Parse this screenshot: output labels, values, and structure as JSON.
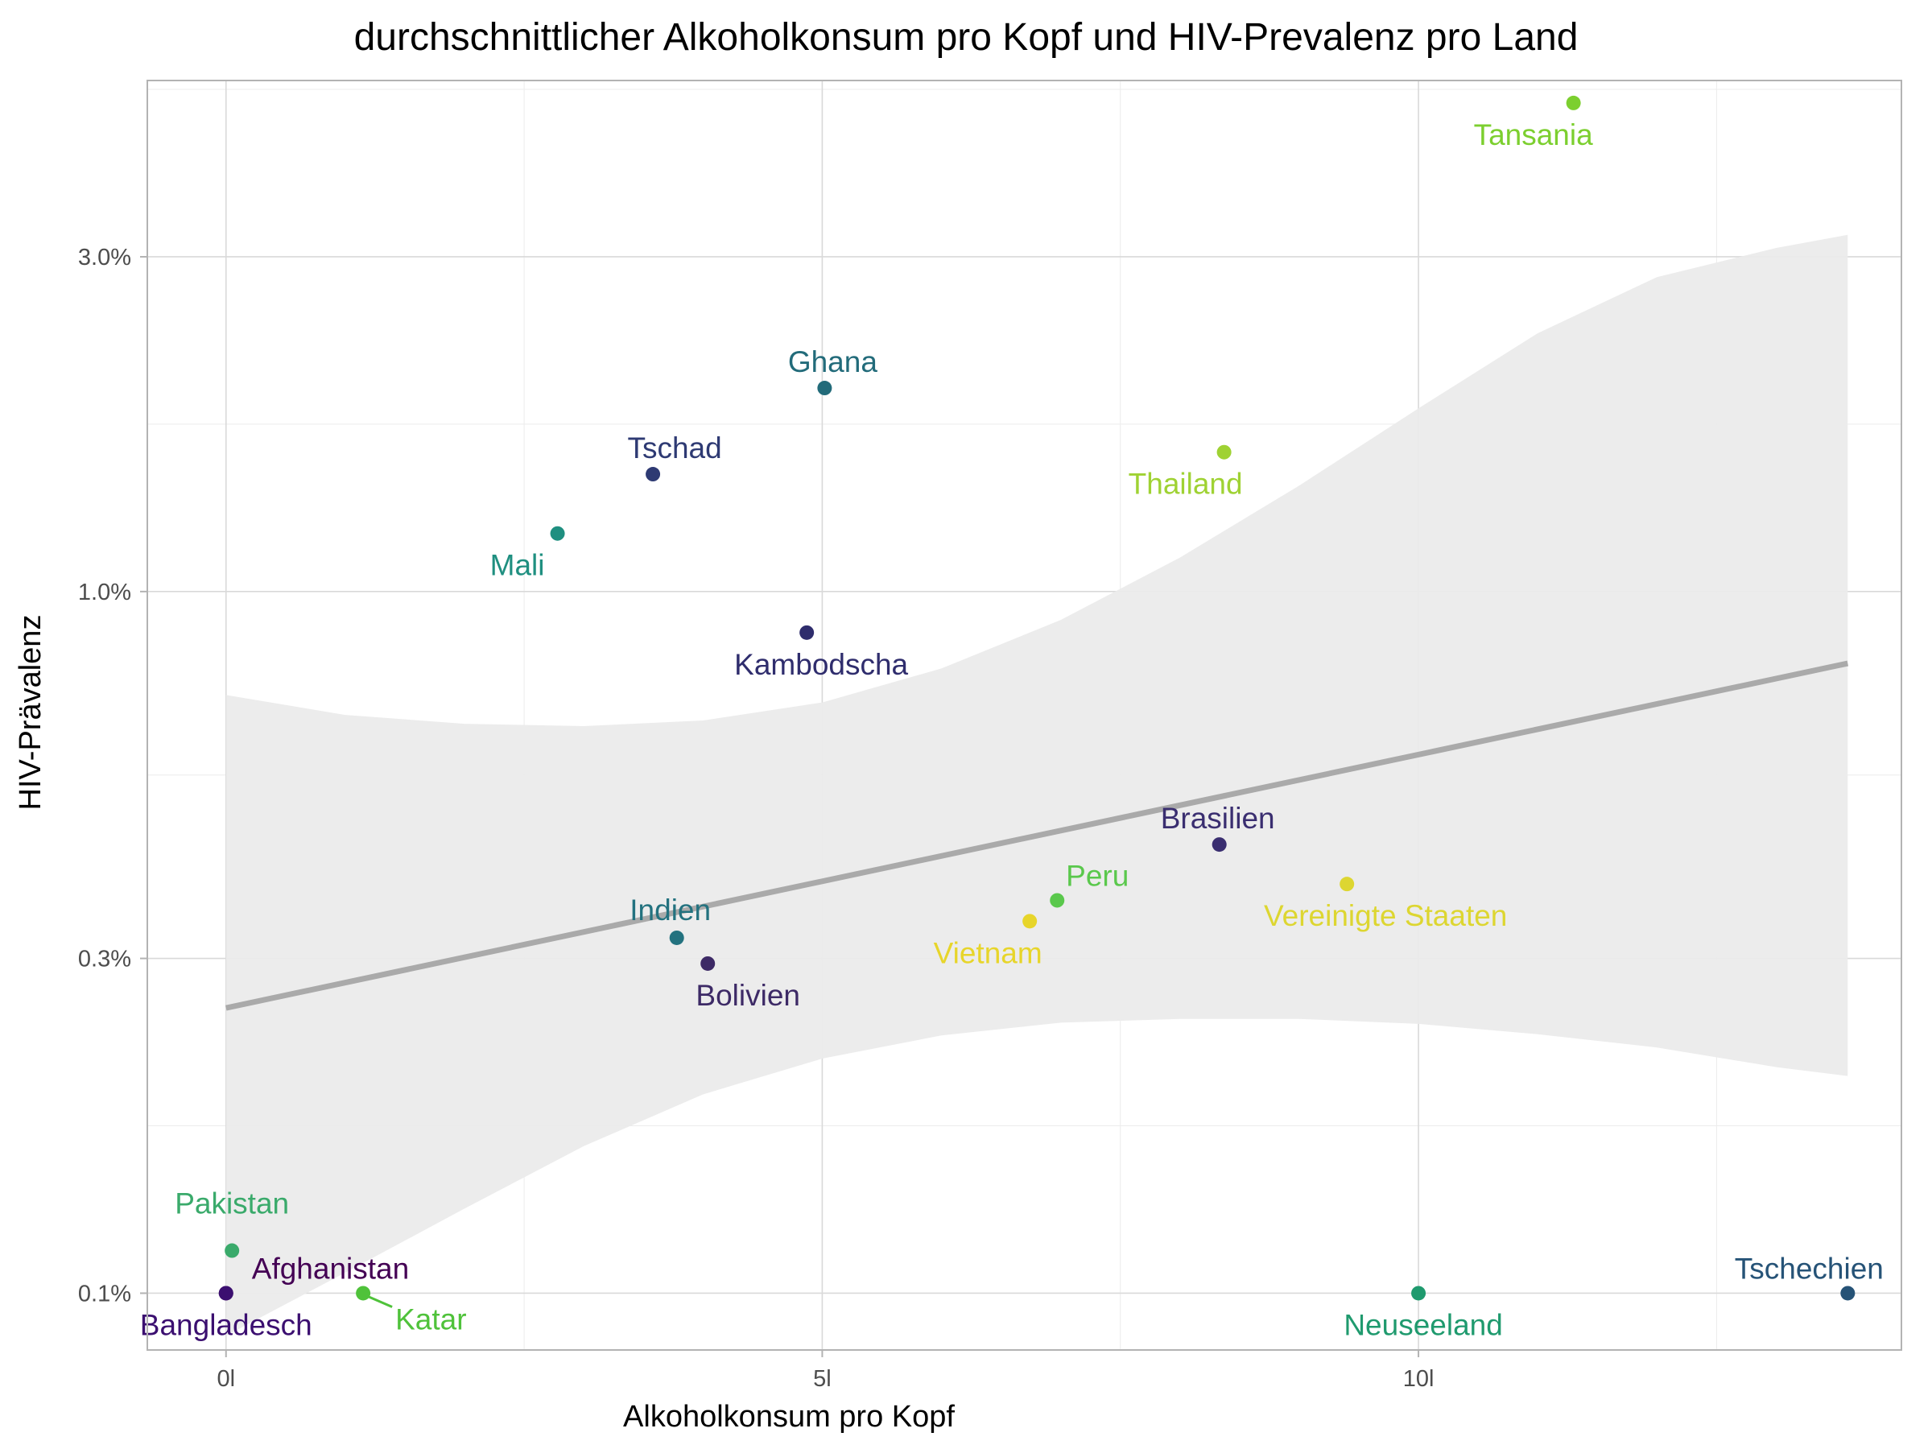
{
  "chart_data": {
    "type": "scatter",
    "title": "durchschnittlicher Alkoholkonsum pro Kopf und HIV-Prevalenz pro Land",
    "xlabel": "Alkoholkonsum pro Kopf",
    "ylabel": "HIV-Prävalenz",
    "x_ticks": [
      {
        "value": 0,
        "label": "0l"
      },
      {
        "value": 5,
        "label": "5l"
      },
      {
        "value": 10,
        "label": "10l"
      }
    ],
    "y_scale": "log10",
    "y_ticks": [
      {
        "value": 0.1,
        "label": "0.1%"
      },
      {
        "value": 0.3,
        "label": "0.3%"
      },
      {
        "value": 1.0,
        "label": "1.0%"
      },
      {
        "value": 3.0,
        "label": "3.0%"
      }
    ],
    "xlim": [
      -0.66,
      14.05
    ],
    "ylim": [
      0.083,
      5.35
    ],
    "grid": true,
    "legend": "none",
    "points": [
      {
        "name": "Afghanistan",
        "x": 0.0,
        "y": 0.1,
        "color": "#440154"
      },
      {
        "name": "Bangladesch",
        "x": 0.0,
        "y": 0.1,
        "color": "#3b0f70"
      },
      {
        "name": "Pakistan",
        "x": 0.05,
        "y": 0.115,
        "color": "#3aaa6b"
      },
      {
        "name": "Katar",
        "x": 1.15,
        "y": 0.1,
        "color": "#4fc23a"
      },
      {
        "name": "Mali",
        "x": 2.78,
        "y": 1.21,
        "color": "#1f8f80"
      },
      {
        "name": "Tschad",
        "x": 3.58,
        "y": 1.47,
        "color": "#2e3a73"
      },
      {
        "name": "Indien",
        "x": 3.78,
        "y": 0.321,
        "color": "#23727f"
      },
      {
        "name": "Bolivien",
        "x": 4.04,
        "y": 0.295,
        "color": "#3d2a66"
      },
      {
        "name": "Kambodscha",
        "x": 4.87,
        "y": 0.874,
        "color": "#2f2d6d"
      },
      {
        "name": "Ghana",
        "x": 5.02,
        "y": 1.95,
        "color": "#226b7a"
      },
      {
        "name": "Vietnam",
        "x": 6.74,
        "y": 0.339,
        "color": "#e7d52a"
      },
      {
        "name": "Peru",
        "x": 6.97,
        "y": 0.363,
        "color": "#5ac84c"
      },
      {
        "name": "Brasilien",
        "x": 8.33,
        "y": 0.436,
        "color": "#3a2e70"
      },
      {
        "name": "Thailand",
        "x": 8.37,
        "y": 1.58,
        "color": "#9fd233"
      },
      {
        "name": "Vereinigte Staaten",
        "x": 9.4,
        "y": 0.383,
        "color": "#ddd631"
      },
      {
        "name": "Neuseeland",
        "x": 10.0,
        "y": 0.1,
        "color": "#1f9a6e"
      },
      {
        "name": "Tansania",
        "x": 11.3,
        "y": 4.97,
        "color": "#7ccf2f"
      },
      {
        "name": "Tschechien",
        "x": 13.6,
        "y": 0.1,
        "color": "#265377"
      }
    ],
    "trend_line": {
      "x": [
        0.0,
        13.6
      ],
      "y": [
        0.255,
        0.79
      ],
      "color": "#aaaaaa"
    },
    "confidence_band": {
      "x": [
        0.0,
        1.0,
        2.0,
        3.0,
        4.0,
        5.0,
        6.0,
        7.0,
        8.0,
        9.0,
        10.0,
        11.0,
        12.0,
        13.0,
        13.6
      ],
      "upper": [
        0.712,
        0.667,
        0.648,
        0.643,
        0.655,
        0.695,
        0.777,
        0.911,
        1.118,
        1.416,
        1.824,
        2.334,
        2.807,
        3.088,
        3.224
      ],
      "lower": [
        0.087,
        0.107,
        0.132,
        0.162,
        0.192,
        0.216,
        0.233,
        0.243,
        0.246,
        0.246,
        0.242,
        0.234,
        0.224,
        0.21,
        0.204
      ],
      "color": "#ebebeb"
    }
  }
}
